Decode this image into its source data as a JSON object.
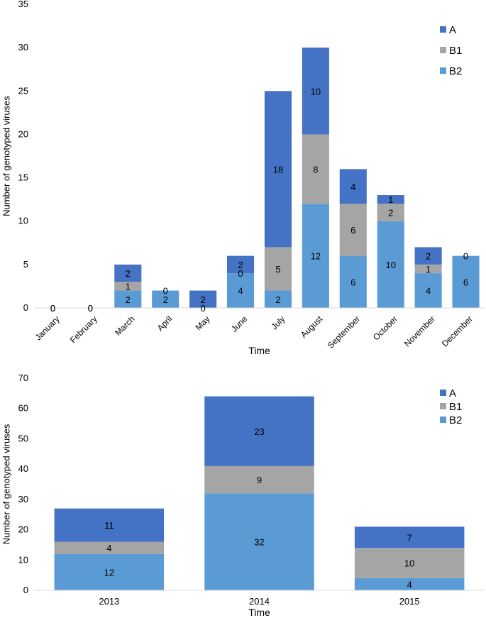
{
  "chart_data": [
    {
      "type": "bar",
      "stacked": true,
      "xlabel": "Time",
      "ylabel": "Number of genotyped viruses",
      "ylim": [
        0,
        35
      ],
      "yticks": [
        0,
        5,
        10,
        15,
        20,
        25,
        30,
        35
      ],
      "categories": [
        "January",
        "February",
        "March",
        "April",
        "May",
        "June",
        "July",
        "August",
        "September",
        "October",
        "November",
        "December"
      ],
      "series": [
        {
          "name": "B2",
          "color": "#5b9bd5",
          "values": [
            0,
            0,
            2,
            2,
            0,
            4,
            2,
            12,
            6,
            10,
            4,
            6
          ]
        },
        {
          "name": "B1",
          "color": "#a5a5a5",
          "values": [
            0,
            0,
            1,
            0,
            0,
            0,
            5,
            8,
            6,
            2,
            1,
            0
          ]
        },
        {
          "name": "A",
          "color": "#4472c4",
          "values": [
            0,
            0,
            2,
            0,
            2,
            2,
            18,
            10,
            4,
            1,
            2,
            0
          ]
        }
      ],
      "data_labels": {
        "B2": [
          "0",
          "0",
          "2",
          "2",
          "0",
          "4",
          "2",
          "12",
          "6",
          "10",
          "4",
          "6"
        ],
        "B1": [
          "",
          "",
          "1",
          "",
          "",
          "0",
          "5",
          "8",
          "6",
          "2",
          "1",
          ""
        ],
        "A": [
          "0",
          "0",
          "2",
          "0",
          "2",
          "2",
          "18",
          "10",
          "4",
          "1",
          "2",
          "0"
        ]
      },
      "legend": {
        "position": "top-right",
        "entries": [
          "A",
          "B1",
          "B2"
        ]
      }
    },
    {
      "type": "bar",
      "stacked": true,
      "xlabel": "Time",
      "ylabel": "Number of genotyped viruses",
      "ylim": [
        0,
        70
      ],
      "yticks": [
        0,
        10,
        20,
        30,
        40,
        50,
        60,
        70
      ],
      "categories": [
        "2013",
        "2014",
        "2015"
      ],
      "series": [
        {
          "name": "B2",
          "color": "#5b9bd5",
          "values": [
            12,
            32,
            4
          ]
        },
        {
          "name": "B1",
          "color": "#a5a5a5",
          "values": [
            4,
            9,
            10
          ]
        },
        {
          "name": "A",
          "color": "#4472c4",
          "values": [
            11,
            23,
            7
          ]
        }
      ],
      "data_labels": {
        "B2": [
          "12",
          "32",
          "4"
        ],
        "B1": [
          "4",
          "9",
          "10"
        ],
        "A": [
          "11",
          "23",
          "7"
        ]
      },
      "legend": {
        "position": "top-right",
        "entries": [
          "A",
          "B1",
          "B2"
        ]
      }
    }
  ]
}
